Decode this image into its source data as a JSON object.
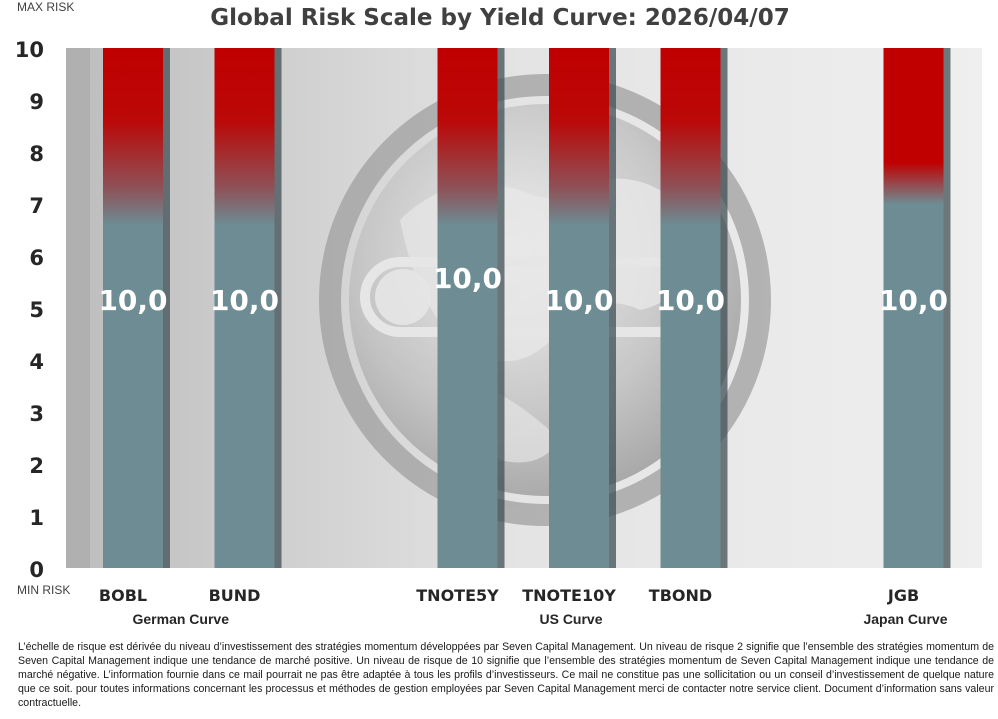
{
  "chart_data": {
    "type": "bar",
    "title": "Global Risk Scale by Yield Curve: 2026/04/07",
    "ylabel_top": "MAX RISK",
    "ylabel_bottom": "MIN RISK",
    "ylim": [
      0,
      10
    ],
    "yticks": [
      "0",
      "1",
      "2",
      "3",
      "4",
      "5",
      "6",
      "7",
      "8",
      "9",
      "10"
    ],
    "grid": false,
    "categories": [
      "BOBL",
      "BUND",
      "TNOTE5Y",
      "TNOTE10Y",
      "TBOND",
      "JGB"
    ],
    "values": [
      10,
      10,
      10,
      10,
      10,
      10
    ],
    "value_labels": [
      "10,0",
      "10,0",
      "10,0",
      "10,0",
      "10,0",
      "10,0"
    ],
    "groups": [
      {
        "name": "German Curve",
        "categories": [
          "BOBL",
          "BUND"
        ]
      },
      {
        "name": "US Curve",
        "categories": [
          "TNOTE5Y",
          "TNOTE10Y",
          "TBOND"
        ]
      },
      {
        "name": "Japan Curve",
        "categories": [
          "JGB"
        ]
      }
    ],
    "colors": {
      "bar_low": "#6e8c93",
      "bar_high": "#c00000",
      "plot_bg": "#d6d6d6"
    }
  },
  "footnote": "L’échelle de risque est dérivée du niveau d’investissement des stratégies momentum développées par Seven Capital Management. Un niveau de risque 2 signifie que l’ensemble des stratégies momentum de Seven Capital Management indique une tendance de marché positive. Un niveau de risque de 10 signifie que l’ensemble des stratégies momentum de Seven Capital Management indique une tendance de marché négative. L’information fournie dans ce mail pourrait ne pas être adaptée à tous les profils d’investisseurs. Ce mail ne constitue pas une sollicitation ou un conseil d’investissement de quelque nature que ce soit. pour toutes informations concernant les processus et méthodes de gestion employées par Seven Capital Management merci de contacter notre service client. Document d’information sans valeur contractuelle."
}
